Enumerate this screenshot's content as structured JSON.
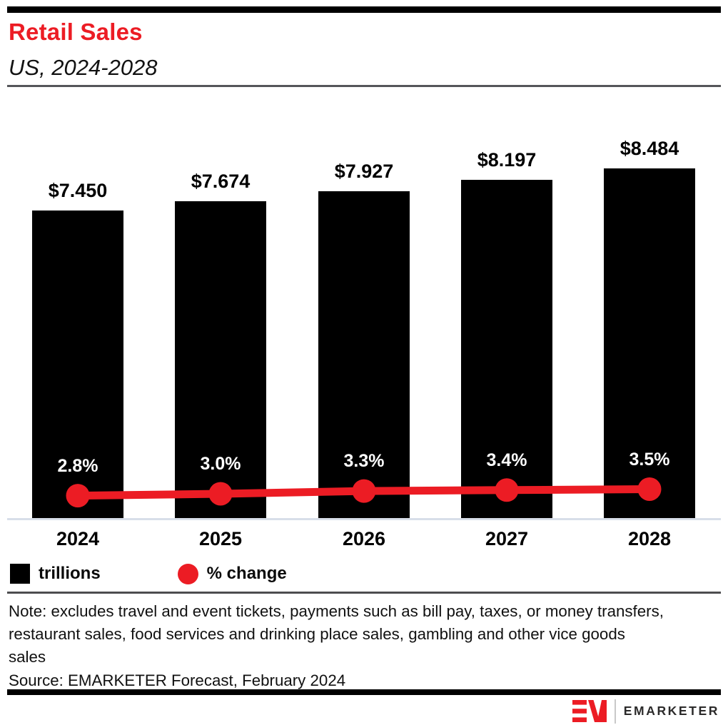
{
  "header": {
    "title": "Retail Sales",
    "subtitle": "US, 2024-2028"
  },
  "chart_data": {
    "type": "bar",
    "subtype": "combo bar + line (dual axis, axes hidden)",
    "title": "Retail Sales",
    "subtitle": "US, 2024-2028",
    "categories": [
      "2024",
      "2025",
      "2026",
      "2027",
      "2028"
    ],
    "series": [
      {
        "name": "trillions",
        "type": "bar",
        "values": [
          7.45,
          7.674,
          7.927,
          8.197,
          8.484
        ],
        "labels": [
          "$7.450",
          "$7.674",
          "$7.927",
          "$8.197",
          "$8.484"
        ],
        "color": "#000000"
      },
      {
        "name": "% change",
        "type": "line",
        "values": [
          2.8,
          3.0,
          3.3,
          3.4,
          3.5
        ],
        "labels": [
          "2.8%",
          "3.0%",
          "3.3%",
          "3.4%",
          "3.5%"
        ],
        "color": "#EC1C24"
      }
    ],
    "xlabel": "",
    "ylabel": "",
    "grid": false,
    "axes_visible": false,
    "legend_position": "bottom-left",
    "legend": [
      "trillions",
      "% change"
    ]
  },
  "legend": {
    "bar_label": "trillions",
    "line_label": "% change"
  },
  "notes": {
    "note": "Note: excludes travel and event tickets, payments such as bill pay, taxes, or money transfers, restaurant sales, food services and drinking place sales, gambling and other vice goods sales",
    "source": "Source: EMARKETER Forecast, February 2024"
  },
  "footer": {
    "brand": "EMARKETER"
  },
  "colors": {
    "accent_red": "#EC1C24",
    "bar_black": "#000000",
    "axis_line": "#D8DEE9",
    "rule_dark": "#4D4D4F",
    "rule_gray": "#55565A"
  }
}
